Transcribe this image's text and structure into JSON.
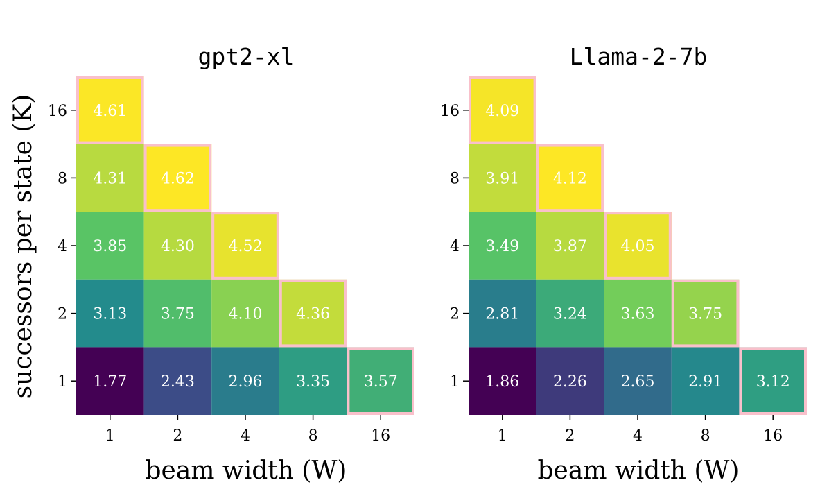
{
  "chart_data": [
    {
      "type": "heatmap",
      "title": "gpt2-xl",
      "xlabel": "beam width (W)",
      "ylabel": "successors per state (K)",
      "x_categories": [
        "1",
        "2",
        "4",
        "8",
        "16"
      ],
      "y_categories": [
        "1",
        "2",
        "4",
        "8",
        "16"
      ],
      "colormap": "viridis",
      "cells": [
        {
          "W": "1",
          "K": "16",
          "value": 4.61,
          "label": "4.61",
          "highlight": true
        },
        {
          "W": "1",
          "K": "8",
          "value": 4.31,
          "label": "4.31",
          "highlight": false
        },
        {
          "W": "2",
          "K": "8",
          "value": 4.62,
          "label": "4.62",
          "highlight": true
        },
        {
          "W": "1",
          "K": "4",
          "value": 3.85,
          "label": "3.85",
          "highlight": false
        },
        {
          "W": "2",
          "K": "4",
          "value": 4.3,
          "label": "4.30",
          "highlight": false
        },
        {
          "W": "4",
          "K": "4",
          "value": 4.52,
          "label": "4.52",
          "highlight": true
        },
        {
          "W": "1",
          "K": "2",
          "value": 3.13,
          "label": "3.13",
          "highlight": false
        },
        {
          "W": "2",
          "K": "2",
          "value": 3.75,
          "label": "3.75",
          "highlight": false
        },
        {
          "W": "4",
          "K": "2",
          "value": 4.1,
          "label": "4.10",
          "highlight": false
        },
        {
          "W": "8",
          "K": "2",
          "value": 4.36,
          "label": "4.36",
          "highlight": true
        },
        {
          "W": "1",
          "K": "1",
          "value": 1.77,
          "label": "1.77",
          "highlight": false
        },
        {
          "W": "2",
          "K": "1",
          "value": 2.43,
          "label": "2.43",
          "highlight": false
        },
        {
          "W": "4",
          "K": "1",
          "value": 2.96,
          "label": "2.96",
          "highlight": false
        },
        {
          "W": "8",
          "K": "1",
          "value": 3.35,
          "label": "3.35",
          "highlight": false
        },
        {
          "W": "16",
          "K": "1",
          "value": 3.57,
          "label": "3.57",
          "highlight": true
        }
      ]
    },
    {
      "type": "heatmap",
      "title": "Llama-2-7b",
      "xlabel": "beam width (W)",
      "ylabel": "",
      "x_categories": [
        "1",
        "2",
        "4",
        "8",
        "16"
      ],
      "y_categories": [
        "1",
        "2",
        "4",
        "8",
        "16"
      ],
      "colormap": "viridis",
      "cells": [
        {
          "W": "1",
          "K": "16",
          "value": 4.09,
          "label": "4.09",
          "highlight": true
        },
        {
          "W": "1",
          "K": "8",
          "value": 3.91,
          "label": "3.91",
          "highlight": false
        },
        {
          "W": "2",
          "K": "8",
          "value": 4.12,
          "label": "4.12",
          "highlight": true
        },
        {
          "W": "1",
          "K": "4",
          "value": 3.49,
          "label": "3.49",
          "highlight": false
        },
        {
          "W": "2",
          "K": "4",
          "value": 3.87,
          "label": "3.87",
          "highlight": false
        },
        {
          "W": "4",
          "K": "4",
          "value": 4.05,
          "label": "4.05",
          "highlight": true
        },
        {
          "W": "1",
          "K": "2",
          "value": 2.81,
          "label": "2.81",
          "highlight": false
        },
        {
          "W": "2",
          "K": "2",
          "value": 3.24,
          "label": "3.24",
          "highlight": false
        },
        {
          "W": "4",
          "K": "2",
          "value": 3.63,
          "label": "3.63",
          "highlight": false
        },
        {
          "W": "8",
          "K": "2",
          "value": 3.75,
          "label": "3.75",
          "highlight": true
        },
        {
          "W": "1",
          "K": "1",
          "value": 1.86,
          "label": "1.86",
          "highlight": false
        },
        {
          "W": "2",
          "K": "1",
          "value": 2.26,
          "label": "2.26",
          "highlight": false
        },
        {
          "W": "4",
          "K": "1",
          "value": 2.65,
          "label": "2.65",
          "highlight": false
        },
        {
          "W": "8",
          "K": "1",
          "value": 2.91,
          "label": "2.91",
          "highlight": false
        },
        {
          "W": "16",
          "K": "1",
          "value": 3.12,
          "label": "3.12",
          "highlight": true
        }
      ]
    }
  ],
  "colors": {
    "highlight_border": "#f9c0cb",
    "text": "#ffffff",
    "axis": "#000000"
  }
}
